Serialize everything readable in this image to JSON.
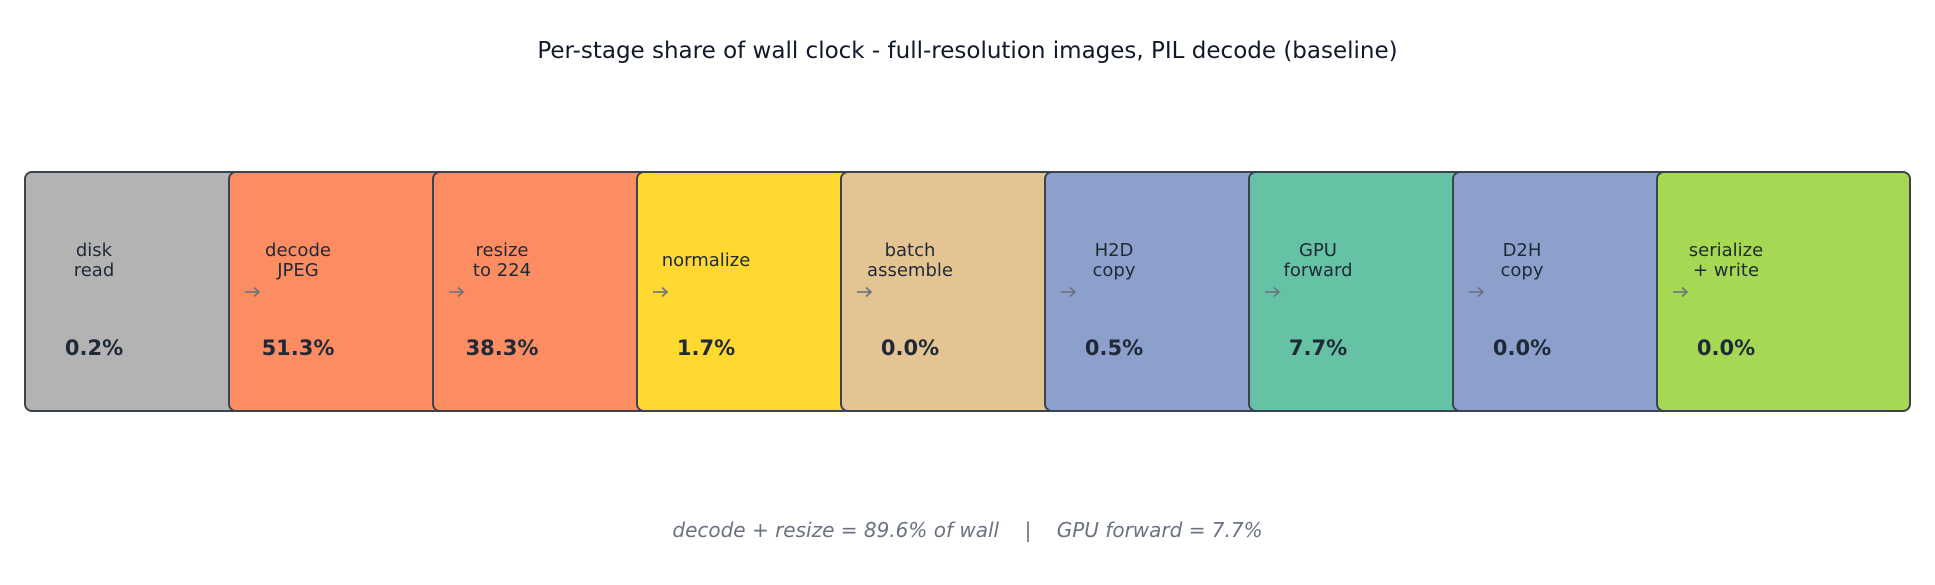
{
  "title": "Per-stage share of wall clock - full-resolution images, PIL decode (baseline)",
  "stages": [
    {
      "label": "disk\nread",
      "value": "0.2%",
      "color": "#b3b3b3"
    },
    {
      "label": "decode\nJPEG",
      "value": "51.3%",
      "color": "#fc8d62"
    },
    {
      "label": "resize\nto 224",
      "value": "38.3%",
      "color": "#fc8d62"
    },
    {
      "label": "normalize",
      "value": "1.7%",
      "color": "#ffd92f"
    },
    {
      "label": "batch\nassemble",
      "value": "0.0%",
      "color": "#e5c494"
    },
    {
      "label": "H2D\ncopy",
      "value": "0.5%",
      "color": "#8da0cb"
    },
    {
      "label": "GPU\nforward",
      "value": "7.7%",
      "color": "#66c2a5"
    },
    {
      "label": "D2H\ncopy",
      "value": "0.0%",
      "color": "#8da0cb"
    },
    {
      "label": "serialize\n+ write",
      "value": "0.0%",
      "color": "#a6d854"
    }
  ],
  "footer": {
    "left": "decode + resize = 89.6% of wall",
    "separator": "|",
    "right": "GPU forward = 7.7%"
  }
}
